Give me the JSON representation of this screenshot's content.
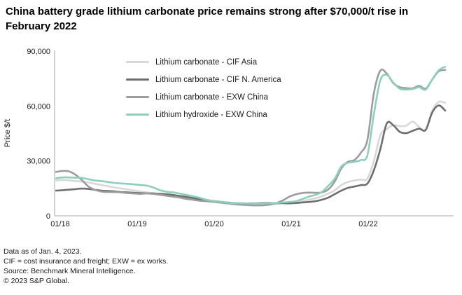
{
  "header": {
    "title": "China battery grade lithium carbonate price remains strong after $70,000/t rise in February 2022"
  },
  "footer": {
    "lines": [
      "Data as of Jan. 4, 2023.",
      "CIF = cost insurance and freight; EXW = ex works.",
      "Source: Benchmark Mineral Intelligence.",
      "© 2023 S&P Global."
    ]
  },
  "colors": {
    "background": "#ffffff",
    "axis": "#c6c6c6",
    "text": "#1a1a1a",
    "cif_asia": "#d8d8d8",
    "cif_n_america": "#6e6e6e",
    "exw_china": "#9c9c9c",
    "hydroxide_exw_china": "#8bcfbd"
  },
  "chart_data": {
    "type": "line",
    "title": "China battery grade lithium carbonate price remains strong after $70,000/t rise in February 2022",
    "xlabel": "",
    "ylabel": "Price $/t",
    "ylim": [
      0,
      90000
    ],
    "y_ticks": [
      0,
      30000,
      60000,
      90000
    ],
    "y_tick_labels": [
      "0",
      "30,000",
      "60,000",
      "90,000"
    ],
    "x_tick_labels": [
      "01/18",
      "01/19",
      "01/20",
      "01/21",
      "01/22"
    ],
    "x_frequency": "monthly",
    "x_range": [
      "01/18",
      "01/23"
    ],
    "grid": false,
    "legend_position": "top-left-inside",
    "series": [
      {
        "name": "Lithium carbonate - CIF Asia",
        "color": "#d8d8d8",
        "values": [
          19300,
          19600,
          19400,
          19000,
          18700,
          18200,
          17500,
          16800,
          16200,
          15500,
          15000,
          14400,
          13900,
          13300,
          12800,
          12400,
          12100,
          11800,
          11400,
          10800,
          10200,
          9500,
          8900,
          8300,
          7800,
          7300,
          6900,
          6500,
          6200,
          6000,
          5900,
          5800,
          5900,
          6100,
          6500,
          7000,
          7300,
          7600,
          8000,
          8800,
          9600,
          10700,
          12200,
          14000,
          16800,
          18500,
          19300,
          19800,
          20300,
          29900,
          44000,
          47500,
          49500,
          49000,
          49300,
          51500,
          48500,
          47000,
          57500,
          62300,
          61800
        ]
      },
      {
        "name": "Lithium carbonate - CIF N. America",
        "color": "#6e6e6e",
        "values": [
          13800,
          14000,
          14300,
          14600,
          14900,
          14700,
          14200,
          13800,
          13600,
          13400,
          13000,
          12800,
          12600,
          12400,
          12300,
          12200,
          12000,
          11800,
          11400,
          10900,
          10400,
          9800,
          9200,
          8700,
          8200,
          7800,
          7400,
          7100,
          6900,
          6800,
          6800,
          6900,
          7000,
          7000,
          6900,
          6900,
          6800,
          7000,
          7300,
          7600,
          8000,
          8800,
          10000,
          11900,
          13800,
          15300,
          16000,
          16800,
          17600,
          24900,
          36400,
          50500,
          49500,
          45900,
          45200,
          46500,
          47600,
          47000,
          56500,
          60300,
          57500
        ]
      },
      {
        "name": "Lithium carbonate - EXW China",
        "color": "#9c9c9c",
        "values": [
          24000,
          24500,
          24300,
          22500,
          19500,
          16000,
          14200,
          13300,
          13000,
          13000,
          12800,
          12400,
          12200,
          12000,
          12300,
          12000,
          11500,
          11000,
          10500,
          10000,
          9300,
          8800,
          8300,
          8000,
          7700,
          7400,
          7000,
          6600,
          6200,
          6000,
          5800,
          5700,
          5800,
          6200,
          7000,
          8500,
          10500,
          11800,
          12500,
          12700,
          12600,
          12800,
          14500,
          19000,
          26000,
          29500,
          30500,
          34500,
          41400,
          67000,
          79300,
          77700,
          72500,
          70300,
          69800,
          69700,
          71000,
          69500,
          74500,
          79000,
          79700
        ]
      },
      {
        "name": "Lithium hydroxide - EXW China",
        "color": "#8bcfbd",
        "values": [
          20500,
          21000,
          21000,
          20800,
          20700,
          20000,
          19300,
          19000,
          18500,
          18000,
          17700,
          17500,
          17200,
          16800,
          16500,
          15500,
          14000,
          13200,
          12800,
          12200,
          11500,
          10800,
          10000,
          9000,
          8200,
          7800,
          7400,
          7000,
          6900,
          6800,
          6800,
          6800,
          6800,
          6900,
          7000,
          7300,
          7600,
          8000,
          9200,
          10500,
          11500,
          13000,
          16500,
          20500,
          27000,
          29000,
          29500,
          30500,
          33000,
          55500,
          74000,
          77000,
          72800,
          69500,
          69000,
          69300,
          70300,
          69000,
          74500,
          79500,
          81500
        ]
      }
    ]
  }
}
